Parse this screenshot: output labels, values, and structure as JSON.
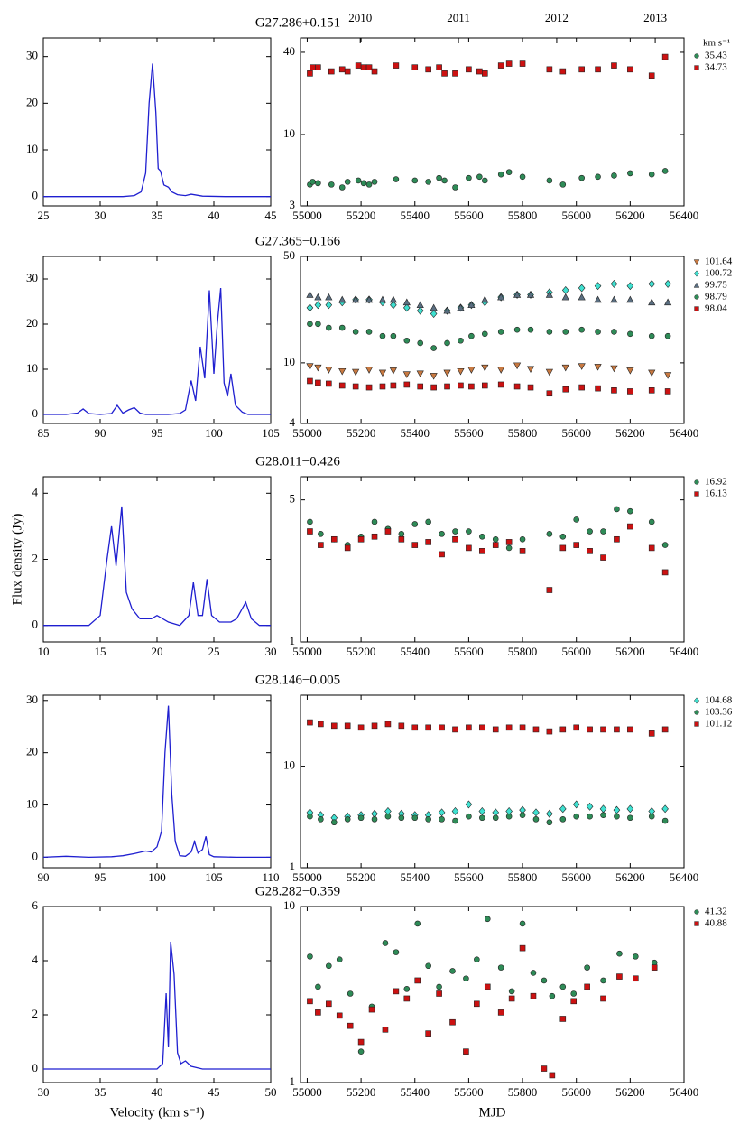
{
  "chart_data": [
    {
      "type": "line",
      "color": "#1f1fd0",
      "xlim": [
        25,
        45
      ],
      "xticks": [
        25,
        30,
        35,
        40,
        45
      ],
      "ylim": [
        -2,
        34
      ],
      "yticks": [
        0,
        10,
        20,
        30
      ],
      "x": [
        25,
        27,
        29,
        31,
        32,
        33,
        33.6,
        34,
        34.3,
        34.6,
        34.9,
        35.1,
        35.3,
        35.6,
        36,
        36.3,
        36.8,
        37.5,
        38,
        39,
        41,
        43,
        45
      ],
      "values": [
        0,
        0,
        0,
        0,
        0,
        0.2,
        1,
        5,
        20,
        28.5,
        18,
        6,
        5.5,
        2.5,
        2,
        1,
        0.4,
        0.2,
        0.5,
        0.1,
        0,
        0,
        0
      ]
    },
    {
      "type": "scatter",
      "title": "G27.286+0.151",
      "log": true,
      "xlim": [
        54975,
        56400
      ],
      "xticks": [
        55000,
        55200,
        55400,
        55600,
        55800,
        56000,
        56200,
        56400
      ],
      "x2ticks": [
        {
          "value": 55197,
          "label": "2010"
        },
        {
          "value": 55562,
          "label": "2011"
        },
        {
          "value": 55927,
          "label": "2012"
        },
        {
          "value": 56293,
          "label": "2013"
        }
      ],
      "ylim": [
        3,
        51
      ],
      "yticks": [
        3,
        10,
        40
      ],
      "legend_title": "km s⁻¹",
      "x": [
        55010,
        55020,
        55040,
        55090,
        55130,
        55150,
        55190,
        55210,
        55230,
        55250,
        55330,
        55400,
        55450,
        55490,
        55510,
        55550,
        55600,
        55640,
        55660,
        55720,
        55750,
        55800,
        55900,
        55950,
        56020,
        56080,
        56140,
        56200,
        56280,
        56330
      ],
      "series": [
        {
          "name": "35.43",
          "color": "#2e8b57",
          "marker": "circle",
          "values": [
            4.3,
            4.5,
            4.4,
            4.3,
            4.1,
            4.5,
            4.6,
            4.4,
            4.3,
            4.5,
            4.7,
            4.6,
            4.5,
            4.8,
            4.6,
            4.1,
            4.8,
            4.9,
            4.6,
            5.1,
            5.3,
            4.9,
            4.6,
            4.3,
            4.8,
            4.9,
            5.0,
            5.2,
            5.1,
            5.4
          ]
        },
        {
          "name": "34.73",
          "color": "#cc1111",
          "marker": "square",
          "values": [
            28,
            31,
            31,
            29,
            30,
            29,
            32,
            31,
            31,
            29,
            32,
            31,
            30,
            31,
            28,
            28,
            30,
            29,
            28,
            32,
            33,
            33,
            30,
            29,
            30,
            30,
            32,
            30,
            27,
            37
          ]
        }
      ]
    },
    {
      "type": "line",
      "color": "#1f1fd0",
      "xlim": [
        85,
        105
      ],
      "xticks": [
        85,
        90,
        95,
        100,
        105
      ],
      "ylim": [
        -2,
        35
      ],
      "yticks": [
        0,
        10,
        20,
        30
      ],
      "x": [
        85,
        87,
        88,
        88.5,
        89,
        90,
        91,
        91.5,
        92,
        92.5,
        93,
        93.5,
        94,
        95,
        96,
        97,
        97.5,
        98,
        98.4,
        98.8,
        99.2,
        99.6,
        100,
        100.3,
        100.6,
        100.9,
        101.2,
        101.5,
        101.9,
        102.5,
        103,
        104,
        105
      ],
      "values": [
        0,
        0,
        0.3,
        1.2,
        0.2,
        0,
        0.2,
        2,
        0.3,
        1,
        1.5,
        0.3,
        0,
        0,
        0,
        0.2,
        1,
        7.5,
        3,
        15,
        8,
        27.5,
        9,
        20,
        28,
        7,
        4,
        9,
        2,
        0.5,
        0,
        0,
        0
      ]
    },
    {
      "type": "scatter",
      "title": "G27.365−0.166",
      "log": true,
      "xlim": [
        54975,
        56400
      ],
      "xticks": [
        55000,
        55200,
        55400,
        55600,
        55800,
        56000,
        56200,
        56400
      ],
      "ylim": [
        4,
        50
      ],
      "yticks": [
        4,
        10,
        50
      ],
      "x": [
        55010,
        55040,
        55080,
        55130,
        55180,
        55230,
        55280,
        55320,
        55370,
        55420,
        55470,
        55520,
        55570,
        55610,
        55660,
        55720,
        55780,
        55830,
        55900,
        55960,
        56020,
        56080,
        56140,
        56200,
        56280,
        56340
      ],
      "series": [
        {
          "name": "101.64",
          "color": "#c87941",
          "marker": "triangle-down",
          "values": [
            9.5,
            9.3,
            9.0,
            8.8,
            8.7,
            9.0,
            8.6,
            8.9,
            8.4,
            8.5,
            8.2,
            8.6,
            8.8,
            9.0,
            9.3,
            9.0,
            9.6,
            9.1,
            8.7,
            9.3,
            9.5,
            9.4,
            9.2,
            8.9,
            8.6,
            8.3
          ]
        },
        {
          "name": "100.72",
          "color": "#3fe0d0",
          "marker": "diamond",
          "values": [
            23,
            24,
            24,
            25,
            26,
            26,
            25,
            24,
            23,
            22,
            21,
            22,
            23,
            24,
            25,
            27,
            28,
            28,
            29,
            30,
            31,
            32,
            33,
            32,
            33,
            33
          ]
        },
        {
          "name": "99.75",
          "color": "#5a6e80",
          "marker": "triangle-up",
          "values": [
            28,
            27,
            27,
            26,
            26,
            26,
            26,
            26,
            25,
            24,
            23,
            22,
            23,
            24,
            26,
            27,
            28,
            28,
            28,
            27,
            27,
            26,
            26,
            26,
            25,
            25
          ]
        },
        {
          "name": "98.79",
          "color": "#2e8b57",
          "marker": "circle",
          "values": [
            18,
            18,
            17,
            17,
            16,
            16,
            15,
            15,
            14,
            13.5,
            12.5,
            13.5,
            14,
            15,
            15.5,
            16,
            16.5,
            16.5,
            16,
            16,
            16.5,
            16,
            16,
            15.5,
            15,
            15
          ]
        },
        {
          "name": "98.04",
          "color": "#cc1111",
          "marker": "square",
          "values": [
            7.6,
            7.4,
            7.3,
            7.1,
            7.0,
            6.9,
            7.0,
            7.1,
            7.2,
            7.0,
            6.9,
            7.0,
            7.1,
            7.0,
            7.1,
            7.2,
            7.0,
            6.9,
            6.3,
            6.7,
            6.9,
            6.8,
            6.6,
            6.5,
            6.6,
            6.5
          ]
        }
      ]
    },
    {
      "type": "line",
      "color": "#1f1fd0",
      "ylabel": "Flux density (Jy)",
      "xlim": [
        10,
        30
      ],
      "xticks": [
        10,
        15,
        20,
        25,
        30
      ],
      "ylim": [
        -0.5,
        4.5
      ],
      "yticks": [
        0,
        2,
        4
      ],
      "x": [
        10,
        12,
        14,
        15,
        15.6,
        16,
        16.4,
        16.9,
        17.3,
        17.8,
        18.5,
        19.5,
        20,
        21,
        22,
        22.8,
        23.2,
        23.6,
        24,
        24.4,
        24.8,
        25.5,
        26.5,
        27,
        27.8,
        28.3,
        29,
        30
      ],
      "values": [
        0,
        0,
        0,
        0.3,
        2,
        3,
        1.8,
        3.6,
        1,
        0.5,
        0.2,
        0.2,
        0.3,
        0.1,
        0,
        0.3,
        1.3,
        0.3,
        0.3,
        1.4,
        0.3,
        0.1,
        0.1,
        0.2,
        0.7,
        0.2,
        0,
        0
      ]
    },
    {
      "type": "scatter",
      "title": "G28.011−0.426",
      "log": true,
      "xlim": [
        54975,
        56400
      ],
      "xticks": [
        55000,
        55200,
        55400,
        55600,
        55800,
        56000,
        56200,
        56400
      ],
      "ylim": [
        1,
        6.5
      ],
      "yticks": [
        1,
        5
      ],
      "x": [
        55010,
        55050,
        55100,
        55150,
        55200,
        55250,
        55300,
        55350,
        55400,
        55450,
        55500,
        55550,
        55600,
        55650,
        55700,
        55750,
        55800,
        55900,
        55950,
        56000,
        56050,
        56100,
        56150,
        56200,
        56280,
        56330
      ],
      "series": [
        {
          "name": "16.92",
          "color": "#2e8b57",
          "marker": "circle",
          "values": [
            3.9,
            3.4,
            3.2,
            3.0,
            3.3,
            3.9,
            3.6,
            3.4,
            3.8,
            3.9,
            3.4,
            3.5,
            3.5,
            3.3,
            3.2,
            2.9,
            3.2,
            3.4,
            3.3,
            4.0,
            3.5,
            3.5,
            4.5,
            4.4,
            3.9,
            3.0
          ]
        },
        {
          "name": "16.13",
          "color": "#cc1111",
          "marker": "square",
          "values": [
            3.5,
            3.0,
            3.2,
            2.9,
            3.2,
            3.3,
            3.5,
            3.2,
            3.0,
            3.1,
            2.7,
            3.2,
            2.9,
            2.8,
            3.0,
            3.1,
            2.8,
            1.8,
            2.9,
            3.0,
            2.8,
            2.6,
            3.2,
            3.7,
            2.9,
            2.2
          ]
        }
      ]
    },
    {
      "type": "line",
      "color": "#1f1fd0",
      "xlim": [
        90,
        110
      ],
      "xticks": [
        90,
        95,
        100,
        105,
        110
      ],
      "ylim": [
        -2,
        31
      ],
      "yticks": [
        0,
        10,
        20,
        30
      ],
      "x": [
        90,
        92,
        94,
        96,
        97,
        98,
        99,
        99.5,
        100,
        100.4,
        100.7,
        101,
        101.3,
        101.6,
        102,
        102.5,
        103,
        103.3,
        103.6,
        104,
        104.3,
        104.6,
        105,
        107,
        110
      ],
      "values": [
        0,
        0.2,
        0,
        0.1,
        0.3,
        0.7,
        1.2,
        1,
        2,
        5,
        20,
        29,
        12,
        3,
        0.3,
        0.2,
        1,
        3,
        0.8,
        1.5,
        4,
        0.5,
        0.1,
        0,
        0
      ]
    },
    {
      "type": "scatter",
      "title": "G28.146−0.005",
      "log": true,
      "xlim": [
        54975,
        56400
      ],
      "xticks": [
        55000,
        55200,
        55400,
        55600,
        55800,
        56000,
        56200,
        56400
      ],
      "ylim": [
        1,
        50
      ],
      "yticks": [
        1,
        10
      ],
      "x": [
        55010,
        55050,
        55100,
        55150,
        55200,
        55250,
        55300,
        55350,
        55400,
        55450,
        55500,
        55550,
        55600,
        55650,
        55700,
        55750,
        55800,
        55850,
        55900,
        55950,
        56000,
        56050,
        56100,
        56150,
        56200,
        56280,
        56330
      ],
      "series": [
        {
          "name": "104.68",
          "color": "#3fe0d0",
          "marker": "diamond",
          "values": [
            3.5,
            3.3,
            3.1,
            3.2,
            3.3,
            3.4,
            3.6,
            3.4,
            3.3,
            3.3,
            3.5,
            3.6,
            4.2,
            3.6,
            3.5,
            3.6,
            3.7,
            3.5,
            3.4,
            3.8,
            4.2,
            4.0,
            3.8,
            3.7,
            3.8,
            3.6,
            3.8
          ]
        },
        {
          "name": "103.36",
          "color": "#2e8b57",
          "marker": "circle",
          "values": [
            3.2,
            3.0,
            2.8,
            3.0,
            3.1,
            3.0,
            3.2,
            3.1,
            3.1,
            3.0,
            3.0,
            2.9,
            3.2,
            3.1,
            3.1,
            3.2,
            3.3,
            3.0,
            2.8,
            3.0,
            3.2,
            3.2,
            3.3,
            3.2,
            3.1,
            3.2,
            2.9
          ]
        },
        {
          "name": "101.12",
          "color": "#cc1111",
          "marker": "square",
          "values": [
            27,
            26,
            25,
            25,
            24,
            25,
            26,
            25,
            24,
            24,
            24,
            23,
            24,
            24,
            23,
            24,
            24,
            23,
            22,
            23,
            24,
            23,
            23,
            23,
            23,
            21,
            23
          ]
        }
      ]
    },
    {
      "type": "line",
      "color": "#1f1fd0",
      "xlabel": "Velocity (km s⁻¹)",
      "xlim": [
        30,
        50
      ],
      "xticks": [
        30,
        35,
        40,
        45,
        50
      ],
      "ylim": [
        -0.5,
        6
      ],
      "yticks": [
        0,
        2,
        4,
        6
      ],
      "x": [
        30,
        32,
        34,
        36,
        38,
        39,
        40,
        40.5,
        40.8,
        41,
        41.2,
        41.5,
        41.8,
        42.1,
        42.5,
        43,
        44,
        46,
        48,
        50
      ],
      "values": [
        0,
        0,
        0,
        0,
        0,
        0,
        0,
        0.2,
        2.8,
        0.8,
        4.7,
        3.5,
        0.6,
        0.2,
        0.3,
        0.1,
        0,
        0,
        0,
        0
      ]
    },
    {
      "type": "scatter",
      "title": "G28.282−0.359",
      "xlabel": "MJD",
      "log": true,
      "xlim": [
        54975,
        56400
      ],
      "xticks": [
        55000,
        55200,
        55400,
        55600,
        55800,
        56000,
        56200,
        56400
      ],
      "ylim": [
        1,
        10
      ],
      "yticks": [
        1,
        10
      ],
      "x": [
        55010,
        55040,
        55080,
        55120,
        55160,
        55200,
        55240,
        55290,
        55330,
        55370,
        55410,
        55450,
        55490,
        55540,
        55590,
        55630,
        55670,
        55720,
        55760,
        55800,
        55840,
        55880,
        55910,
        55950,
        55990,
        56040,
        56100,
        56160,
        56220,
        56290
      ],
      "series": [
        {
          "name": "41.32",
          "color": "#2e8b57",
          "marker": "circle",
          "values": [
            5.2,
            3.5,
            4.6,
            5.0,
            3.2,
            1.5,
            2.7,
            6.2,
            5.5,
            3.4,
            8.0,
            4.6,
            3.5,
            4.3,
            3.9,
            5.0,
            8.5,
            4.5,
            3.3,
            8.0,
            4.2,
            3.8,
            3.1,
            3.5,
            3.2,
            4.5,
            3.8,
            5.4,
            5.2,
            4.8
          ]
        },
        {
          "name": "40.88",
          "color": "#cc1111",
          "marker": "square",
          "values": [
            2.9,
            2.5,
            2.8,
            2.4,
            2.1,
            1.7,
            2.6,
            2.0,
            3.3,
            3.0,
            3.8,
            1.9,
            3.2,
            2.2,
            1.5,
            2.8,
            3.5,
            2.5,
            3.0,
            5.8,
            3.1,
            1.2,
            1.1,
            2.3,
            2.9,
            3.5,
            3.0,
            4.0,
            3.9,
            4.5
          ]
        }
      ]
    }
  ]
}
